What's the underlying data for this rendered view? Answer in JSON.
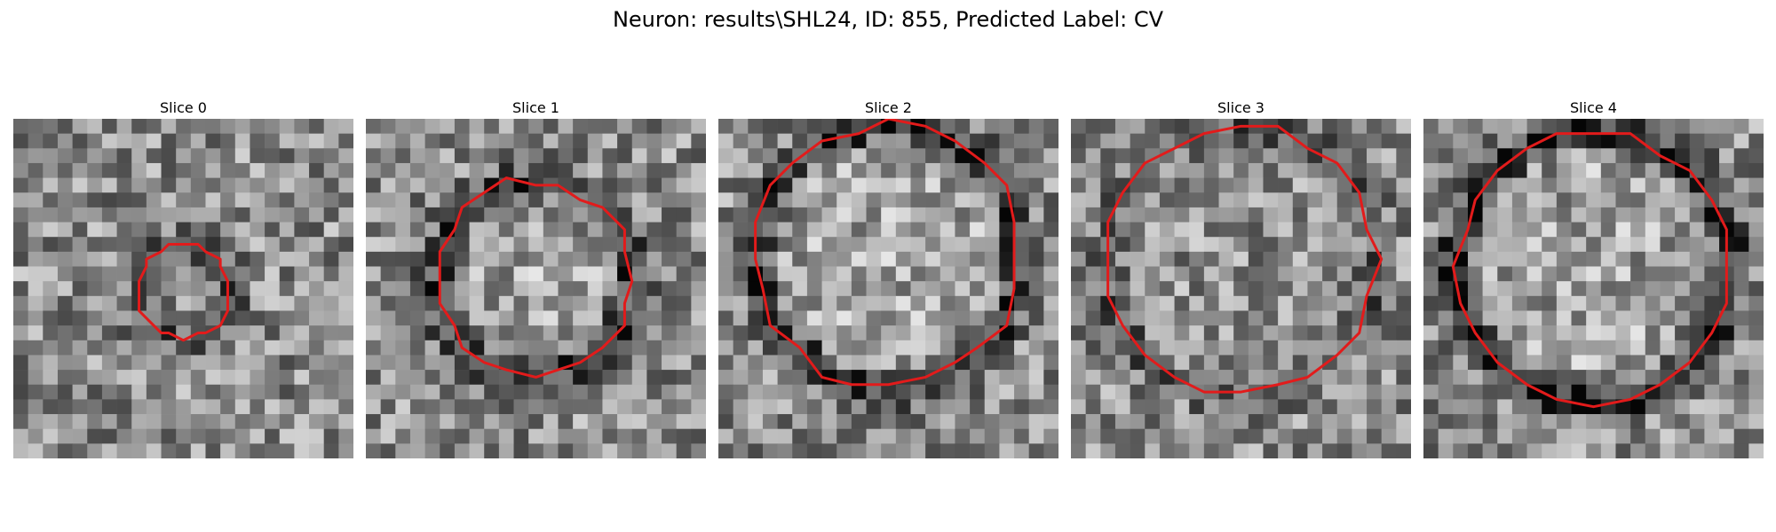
{
  "figure": {
    "title": "Neuron: results\\SHL24, ID: 855, Predicted Label: CV",
    "contour_color": "#e21b1b"
  },
  "panels": [
    {
      "title": "Slice 0",
      "seed": 11,
      "contour": {
        "cx": 11.5,
        "cy": 11.6,
        "r": 3.1,
        "dark_ring": 0.5,
        "bright_inside": 0.0
      }
    },
    {
      "title": "Slice 1",
      "seed": 23,
      "contour": {
        "cx": 11.4,
        "cy": 10.8,
        "r": 6.6,
        "dark_ring": 0.7,
        "bright_inside": 0.35
      }
    },
    {
      "title": "Slice 2",
      "seed": 37,
      "contour": {
        "cx": 11.5,
        "cy": 9.3,
        "r": 8.9,
        "dark_ring": 0.8,
        "bright_inside": 0.4
      }
    },
    {
      "title": "Slice 3",
      "seed": 53,
      "contour": {
        "cx": 11.5,
        "cy": 9.6,
        "r": 9.2,
        "dark_ring": 0.4,
        "bright_inside": 0.05
      }
    },
    {
      "title": "Slice 4",
      "seed": 71,
      "contour": {
        "cx": 11.5,
        "cy": 10.0,
        "r": 9.2,
        "dark_ring": 0.9,
        "bright_inside": 0.35
      }
    }
  ]
}
